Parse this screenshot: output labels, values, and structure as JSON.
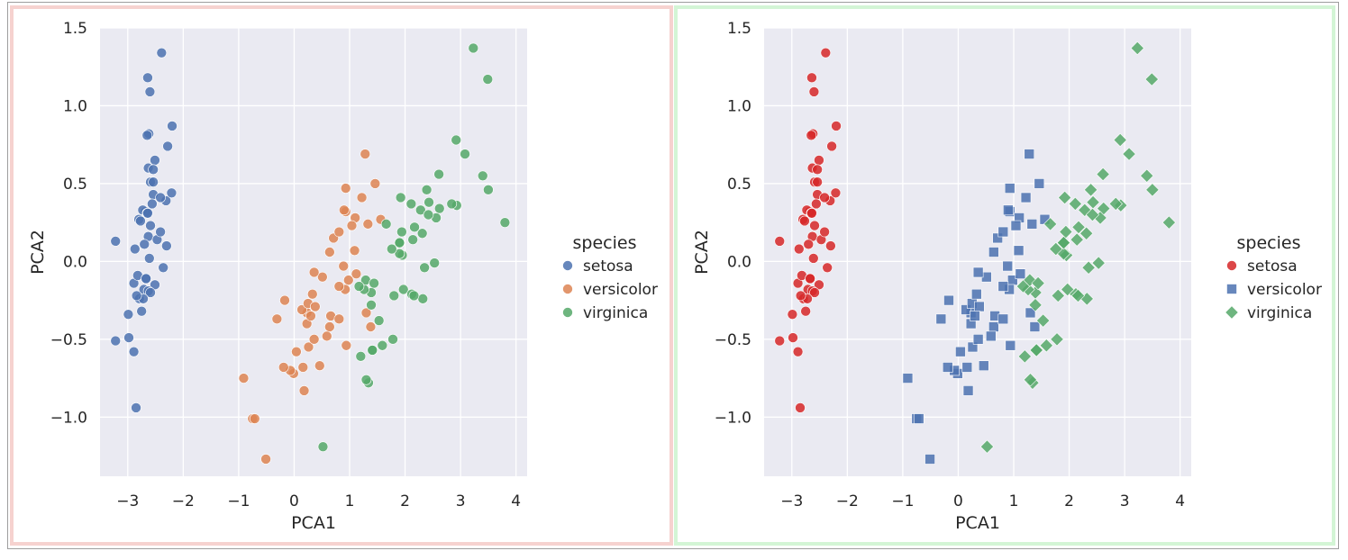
{
  "charts": [
    {
      "id": "left",
      "chart_data": {
        "type": "scatter",
        "xlabel": "PCA1",
        "ylabel": "PCA2",
        "xlim": [
          -3.5,
          4.2
        ],
        "ylim": [
          -1.38,
          1.5
        ],
        "xticks": [
          "−3",
          "−2",
          "−1",
          "0",
          "1",
          "2",
          "3",
          "4"
        ],
        "yticks": [
          "1.5",
          "1.0",
          "0.5",
          "0.0",
          "−0.5",
          "−1.0"
        ],
        "legend": {
          "title": "species",
          "placement": "right"
        },
        "series": [
          {
            "name": "setosa",
            "color": "#4c72b0",
            "marker": "circle",
            "points": [
              [
                -2.68,
                0.32
              ],
              [
                -2.71,
                -0.18
              ],
              [
                -2.89,
                -0.14
              ],
              [
                -2.75,
                -0.32
              ],
              [
                -2.73,
                0.33
              ],
              [
                -2.28,
                0.74
              ],
              [
                -2.82,
                -0.09
              ],
              [
                -2.63,
                0.16
              ],
              [
                -2.89,
                -0.58
              ],
              [
                -2.67,
                -0.11
              ],
              [
                -2.51,
                0.65
              ],
              [
                -2.61,
                0.02
              ],
              [
                -2.79,
                -0.24
              ],
              [
                -3.22,
                -0.51
              ],
              [
                -2.64,
                1.18
              ],
              [
                -2.39,
                1.34
              ],
              [
                -2.62,
                0.82
              ],
              [
                -2.65,
                0.31
              ],
              [
                -2.2,
                0.87
              ],
              [
                -2.59,
                0.51
              ],
              [
                -2.31,
                0.39
              ],
              [
                -2.54,
                0.43
              ],
              [
                -3.22,
                0.13
              ],
              [
                -2.3,
                0.1
              ],
              [
                -2.36,
                -0.04
              ],
              [
                -2.51,
                -0.15
              ],
              [
                -2.47,
                0.14
              ],
              [
                -2.56,
                0.37
              ],
              [
                -2.64,
                0.31
              ],
              [
                -2.63,
                -0.19
              ],
              [
                -2.59,
                -0.2
              ],
              [
                -2.41,
                0.41
              ],
              [
                -2.65,
                0.81
              ],
              [
                -2.6,
                1.09
              ],
              [
                -2.67,
                -0.11
              ],
              [
                -2.87,
                0.08
              ],
              [
                -2.63,
                0.6
              ],
              [
                -2.8,
                0.27
              ],
              [
                -2.98,
                -0.49
              ],
              [
                -2.59,
                0.23
              ],
              [
                -2.77,
                0.26
              ],
              [
                -2.85,
                -0.94
              ],
              [
                -2.99,
                -0.34
              ],
              [
                -2.41,
                0.19
              ],
              [
                -2.21,
                0.44
              ],
              [
                -2.72,
                -0.24
              ],
              [
                -2.54,
                0.51
              ],
              [
                -2.84,
                -0.22
              ],
              [
                -2.54,
                0.59
              ],
              [
                -2.7,
                0.11
              ]
            ]
          },
          {
            "name": "versicolor",
            "color": "#dd8452",
            "marker": "circle",
            "points": [
              [
                1.28,
                0.69
              ],
              [
                0.93,
                0.32
              ],
              [
                1.46,
                0.5
              ],
              [
                0.18,
                -0.83
              ],
              [
                1.09,
                0.07
              ],
              [
                0.64,
                -0.42
              ],
              [
                1.1,
                0.28
              ],
              [
                -0.75,
                -1.01
              ],
              [
                1.04,
                0.23
              ],
              [
                -0.01,
                -0.72
              ],
              [
                -0.51,
                -1.27
              ],
              [
                0.51,
                -0.1
              ],
              [
                0.26,
                -0.55
              ],
              [
                0.98,
                -0.12
              ],
              [
                -0.17,
                -0.25
              ],
              [
                0.93,
                0.47
              ],
              [
                0.66,
                -0.35
              ],
              [
                0.23,
                -0.33
              ],
              [
                0.94,
                -0.54
              ],
              [
                0.04,
                -0.58
              ],
              [
                1.12,
                -0.08
              ],
              [
                0.36,
                -0.07
              ],
              [
                1.3,
                -0.33
              ],
              [
                0.92,
                -0.18
              ],
              [
                0.71,
                0.15
              ],
              [
                0.9,
                0.33
              ],
              [
                1.33,
                0.24
              ],
              [
                1.56,
                0.27
              ],
              [
                0.81,
                -0.16
              ],
              [
                -0.31,
                -0.37
              ],
              [
                -0.07,
                -0.7
              ],
              [
                -0.19,
                -0.68
              ],
              [
                0.14,
                -0.31
              ],
              [
                1.38,
                -0.42
              ],
              [
                0.59,
                -0.48
              ],
              [
                0.81,
                0.19
              ],
              [
                1.22,
                0.41
              ],
              [
                0.81,
                -0.37
              ],
              [
                0.25,
                -0.27
              ],
              [
                0.16,
                -0.68
              ],
              [
                0.46,
                -0.67
              ],
              [
                0.89,
                -0.03
              ],
              [
                0.23,
                -0.4
              ],
              [
                -0.71,
                -1.01
              ],
              [
                0.36,
                -0.5
              ],
              [
                0.33,
                -0.21
              ],
              [
                0.38,
                -0.29
              ],
              [
                0.64,
                0.06
              ],
              [
                -0.91,
                -0.75
              ],
              [
                0.3,
                -0.35
              ]
            ]
          },
          {
            "name": "virginica",
            "color": "#55a868",
            "marker": "circle",
            "points": [
              [
                2.53,
                -0.01
              ],
              [
                1.41,
                -0.57
              ],
              [
                2.62,
                0.34
              ],
              [
                1.97,
                -0.18
              ],
              [
                2.35,
                -0.04
              ],
              [
                3.4,
                0.55
              ],
              [
                0.52,
                -1.19
              ],
              [
                2.93,
                0.36
              ],
              [
                2.32,
                -0.24
              ],
              [
                2.92,
                0.78
              ],
              [
                1.66,
                0.24
              ],
              [
                1.8,
                -0.22
              ],
              [
                2.17,
                0.22
              ],
              [
                1.34,
                -0.78
              ],
              [
                1.59,
                -0.54
              ],
              [
                1.9,
                0.12
              ],
              [
                1.95,
                0.04
              ],
              [
                3.49,
                1.17
              ],
              [
                3.8,
                0.25
              ],
              [
                1.3,
                -0.76
              ],
              [
                2.43,
                0.38
              ],
              [
                1.2,
                -0.61
              ],
              [
                3.5,
                0.46
              ],
              [
                1.39,
                -0.2
              ],
              [
                2.28,
                0.33
              ],
              [
                2.61,
                0.56
              ],
              [
                1.26,
                -0.18
              ],
              [
                1.29,
                -0.12
              ],
              [
                2.12,
                -0.21
              ],
              [
                2.39,
                0.46
              ],
              [
                2.84,
                0.37
              ],
              [
                3.23,
                1.37
              ],
              [
                2.16,
                -0.22
              ],
              [
                1.44,
                -0.14
              ],
              [
                1.78,
                -0.5
              ],
              [
                3.08,
                0.69
              ],
              [
                2.14,
                0.14
              ],
              [
                1.9,
                0.05
              ],
              [
                1.17,
                -0.16
              ],
              [
                2.11,
                0.37
              ],
              [
                2.31,
                0.18
              ],
              [
                1.92,
                0.41
              ],
              [
                1.41,
                -0.57
              ],
              [
                2.56,
                0.28
              ],
              [
                2.42,
                0.3
              ],
              [
                1.94,
                0.19
              ],
              [
                1.53,
                -0.38
              ],
              [
                1.76,
                0.08
              ],
              [
                1.9,
                0.12
              ],
              [
                1.39,
                -0.28
              ]
            ]
          }
        ]
      }
    },
    {
      "id": "right",
      "chart_data": {
        "type": "scatter",
        "xlabel": "PCA1",
        "ylabel": "PCA2",
        "xlim": [
          -3.5,
          4.2
        ],
        "ylim": [
          -1.38,
          1.5
        ],
        "xticks": [
          "−3",
          "−2",
          "−1",
          "0",
          "1",
          "2",
          "3",
          "4"
        ],
        "yticks": [
          "1.5",
          "1.0",
          "0.5",
          "0.0",
          "−0.5",
          "−1.0"
        ],
        "legend": {
          "title": "species",
          "placement": "right"
        },
        "series": [
          {
            "name": "setosa",
            "color": "#d62728",
            "marker": "circle",
            "same_points_as": "left.setosa"
          },
          {
            "name": "versicolor",
            "color": "#4c72b0",
            "marker": "square",
            "same_points_as": "left.versicolor"
          },
          {
            "name": "virginica",
            "color": "#55a868",
            "marker": "diamond",
            "same_points_as": "left.virginica"
          }
        ]
      }
    }
  ]
}
